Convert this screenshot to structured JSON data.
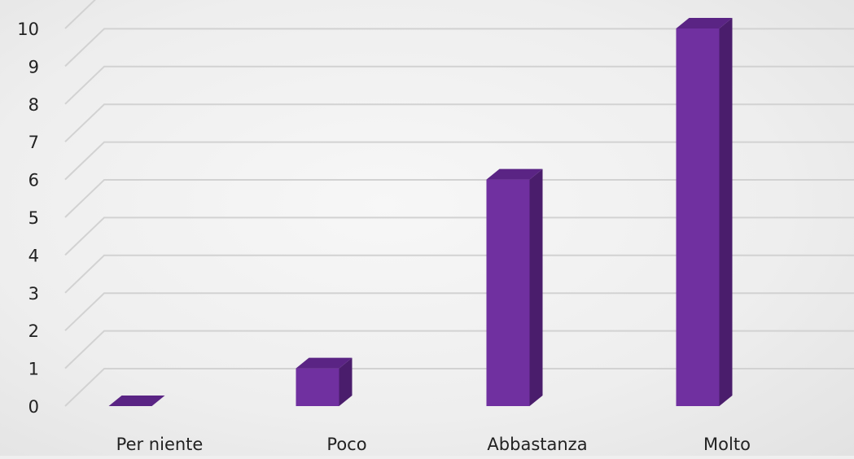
{
  "chart_data": {
    "type": "bar",
    "categories": [
      "Per niente",
      "Poco",
      "Abbastanza",
      "Molto"
    ],
    "values": [
      0,
      1,
      6,
      10
    ],
    "y_ticks": [
      "0",
      "1",
      "2",
      "3",
      "4",
      "5",
      "6",
      "7",
      "8",
      "9",
      "10"
    ],
    "ylim": [
      0,
      10
    ],
    "grid": true,
    "style": "3d-column",
    "colors": {
      "bar_front": "#7030a0",
      "bar_top": "#5a2484",
      "bar_side": "#4a1d6c",
      "gridline": "#d2d2d2"
    }
  }
}
